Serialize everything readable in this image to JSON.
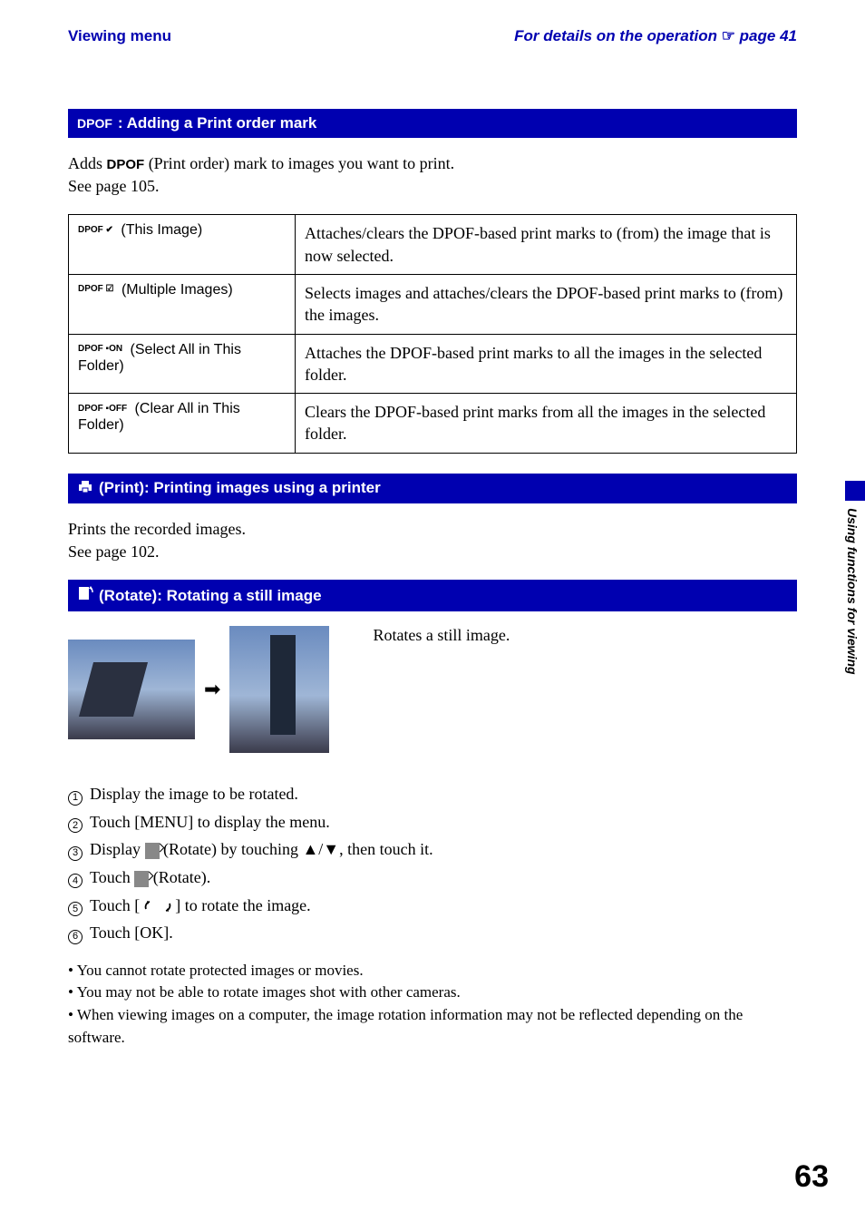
{
  "header": {
    "left": "Viewing menu",
    "right_prefix": "For details on the operation ",
    "right_pointer": "☞",
    "right_suffix": " page 41"
  },
  "section1": {
    "icon_text": "DPOF",
    "title": ": Adding a Print order mark",
    "intro_before": "Adds ",
    "intro_mark": "DPOF",
    "intro_after": " (Print order) mark to images you want to print.",
    "intro_line2": "See page 105.",
    "rows": [
      {
        "icon": "DPOF\n✔",
        "label": " (This Image)",
        "desc": "Attaches/clears the DPOF-based print marks to (from) the image that is now selected."
      },
      {
        "icon": "DPOF\n☑",
        "label": " (Multiple Images)",
        "desc": "Selects images and attaches/clears the DPOF-based print marks to (from) the images."
      },
      {
        "icon": "DPOF\n▪ON",
        "label": " (Select All in This Folder)",
        "desc": "Attaches the DPOF-based print marks to all the images in the selected folder."
      },
      {
        "icon": "DPOF\n▪OFF",
        "label": " (Clear All in This Folder)",
        "desc": "Clears the DPOF-based print marks from all the images in the selected folder."
      }
    ]
  },
  "section2": {
    "title": " (Print): Printing images using a printer",
    "line1": "Prints the recorded images.",
    "line2": "See page 102."
  },
  "section3": {
    "title": " (Rotate): Rotating a still image",
    "desc": "Rotates a still image.",
    "steps": [
      "Display the image to be rotated.",
      "Touch [MENU] to display the menu.",
      "Display __ROTATE_ICON__ (Rotate) by touching ▲/▼, then touch it.",
      "Touch __ROTATE_ICON__ (Rotate).",
      "Touch [ __ARROWS__ ] to rotate the image.",
      "Touch [OK]."
    ],
    "notes": [
      "You cannot rotate protected images or movies.",
      "You may not be able to rotate images shot with other cameras.",
      "When viewing images on a computer, the image rotation information may not be reflected depending on the software."
    ]
  },
  "side_tab": "Using functions for viewing",
  "page_number": "63",
  "colors": {
    "bar_bg": "#0000b0",
    "bar_text": "#ffffff",
    "link_blue": "#0000b0"
  }
}
